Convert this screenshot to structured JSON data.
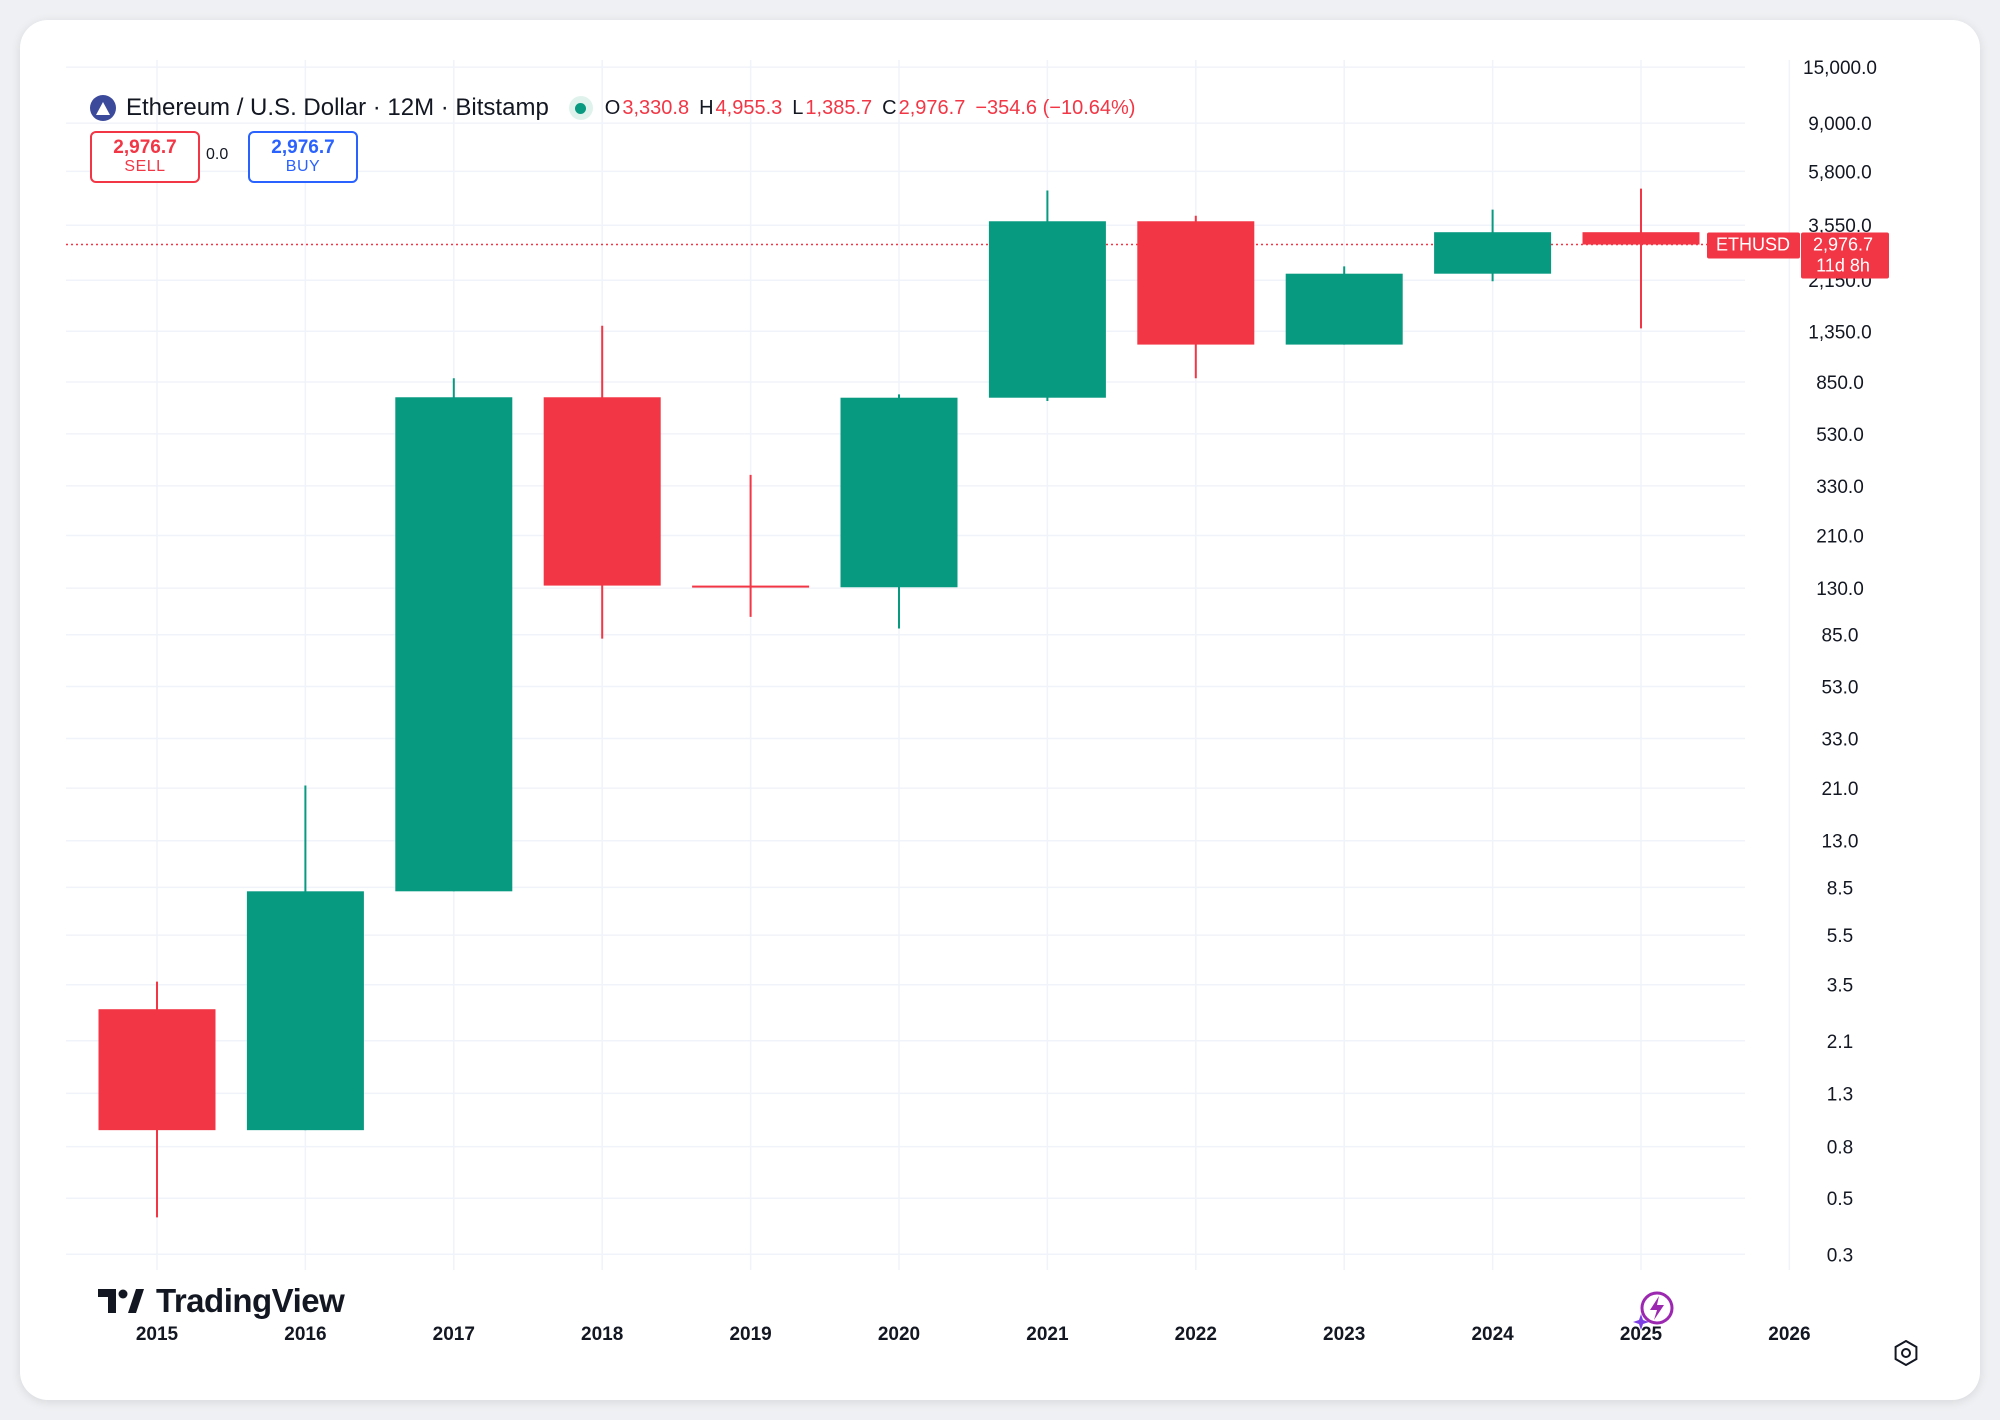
{
  "header": {
    "title": "Ethereum / U.S. Dollar · 12M · Bitstamp",
    "o_label": "O",
    "o_value": "3,330.8",
    "h_label": "H",
    "h_value": "4,955.3",
    "l_label": "L",
    "l_value": "1,385.7",
    "c_label": "C",
    "c_value": "2,976.7",
    "change": "−354.6 (−10.64%)"
  },
  "trade": {
    "sell_price": "2,976.7",
    "sell_label": "SELL",
    "spread": "0.0",
    "buy_price": "2,976.7",
    "buy_label": "BUY"
  },
  "price_tag": {
    "symbol": "ETHUSD",
    "price": "2,976.7",
    "countdown": "11d 8h"
  },
  "brand": {
    "name": "TradingView"
  },
  "colors": {
    "up": "#089981",
    "down": "#f23645",
    "grid": "#f0f3fa",
    "text": "#131722"
  },
  "icons": {
    "settings": "gear-icon",
    "assistant": "sparkle-bolt-icon",
    "logo": "tradingview-logo-icon",
    "symbol": "ethereum-icon"
  },
  "chart_data": {
    "type": "candlestick",
    "scale": "log",
    "current_price": 2976.7,
    "x_labels": [
      "2015",
      "2016",
      "2017",
      "2018",
      "2019",
      "2020",
      "2021",
      "2022",
      "2023",
      "2024",
      "2025",
      "2026"
    ],
    "y_ticks": [
      0.3,
      0.5,
      0.8,
      1.3,
      2.1,
      3.5,
      5.5,
      8.5,
      13.0,
      21.0,
      33.0,
      53.0,
      85.0,
      130.0,
      210.0,
      330.0,
      530.0,
      850.0,
      1350.0,
      2150.0,
      3550.0,
      5800.0,
      9000.0,
      15000.0
    ],
    "y_tick_labels": [
      "0.3",
      "0.5",
      "0.8",
      "1.3",
      "2.1",
      "3.5",
      "5.5",
      "8.5",
      "13.0",
      "21.0",
      "33.0",
      "53.0",
      "85.0",
      "130.0",
      "210.0",
      "330.0",
      "530.0",
      "850.0",
      "1,350.0",
      "2,150.0",
      "3,550.0",
      "5,800.0",
      "9,000.0",
      "15,000.0"
    ],
    "ylim": [
      0.26,
      16000
    ],
    "candles": [
      {
        "year": "2015",
        "open": 2.8,
        "high": 3.6,
        "low": 0.42,
        "close": 0.93
      },
      {
        "year": "2016",
        "open": 0.93,
        "high": 21.5,
        "low": 0.93,
        "close": 8.2
      },
      {
        "year": "2017",
        "open": 8.2,
        "high": 880,
        "low": 8.2,
        "close": 740
      },
      {
        "year": "2018",
        "open": 740,
        "high": 1420,
        "low": 82,
        "close": 133
      },
      {
        "year": "2019",
        "open": 133,
        "high": 365,
        "low": 100,
        "close": 131
      },
      {
        "year": "2020",
        "open": 131,
        "high": 760,
        "low": 90,
        "close": 737
      },
      {
        "year": "2021",
        "open": 737,
        "high": 4870,
        "low": 715,
        "close": 3680
      },
      {
        "year": "2022",
        "open": 3680,
        "high": 3870,
        "low": 880,
        "close": 1196
      },
      {
        "year": "2023",
        "open": 1196,
        "high": 2440,
        "low": 1196,
        "close": 2282
      },
      {
        "year": "2024",
        "open": 2282,
        "high": 4090,
        "low": 2130,
        "close": 3330.8
      },
      {
        "year": "2025",
        "open": 3330.8,
        "high": 4955.3,
        "low": 1385.7,
        "close": 2976.7
      }
    ]
  }
}
